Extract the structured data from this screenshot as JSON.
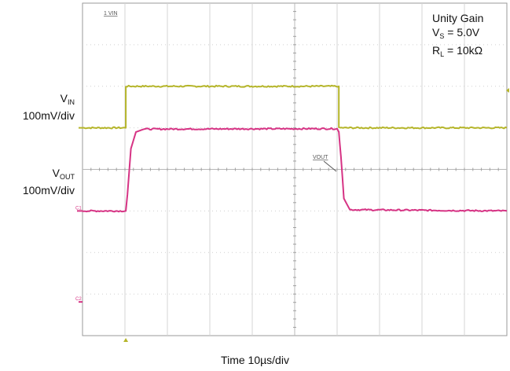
{
  "chart_data": {
    "type": "line",
    "xlabel": "Time 10µs/div",
    "grid": true,
    "x_divisions": 10,
    "y_divisions": 8,
    "x_range_us": [
      0,
      100
    ],
    "y_range_div": [
      -4,
      4
    ],
    "annotations": {
      "conditions": {
        "title": "Unity Gain",
        "vs_main": "V",
        "vs_sub": "S",
        "vs_val": " = 5.0V",
        "rl_main": "R",
        "rl_sub": "L",
        "rl_val": " = 10kΩ"
      },
      "vin": {
        "main": "V",
        "sub": "IN",
        "scale": "100mV/div"
      },
      "vout": {
        "main": "V",
        "sub": "OUT",
        "scale": "100mV/div"
      },
      "tag_vin": "1 VIN",
      "tag_vout": "VOUT",
      "tag_c1": "C1",
      "tag_c2": "C2"
    },
    "series": [
      {
        "name": "VIN",
        "color": "#b5b52a",
        "x": [
          0,
          10.2,
          10.2,
          60.4,
          60.4,
          100
        ],
        "y": [
          1.0,
          1.0,
          2.0,
          2.0,
          1.0,
          1.0
        ]
      },
      {
        "name": "VOUT",
        "color": "#d63384",
        "x": [
          0,
          10.2,
          10.6,
          11.4,
          12.6,
          14.5,
          60.0,
          60.4,
          60.9,
          61.6,
          63.0,
          100
        ],
        "y": [
          -1.0,
          -1.0,
          -0.6,
          0.5,
          0.9,
          0.97,
          0.98,
          0.9,
          0.3,
          -0.7,
          -0.97,
          -1.0
        ]
      }
    ]
  }
}
